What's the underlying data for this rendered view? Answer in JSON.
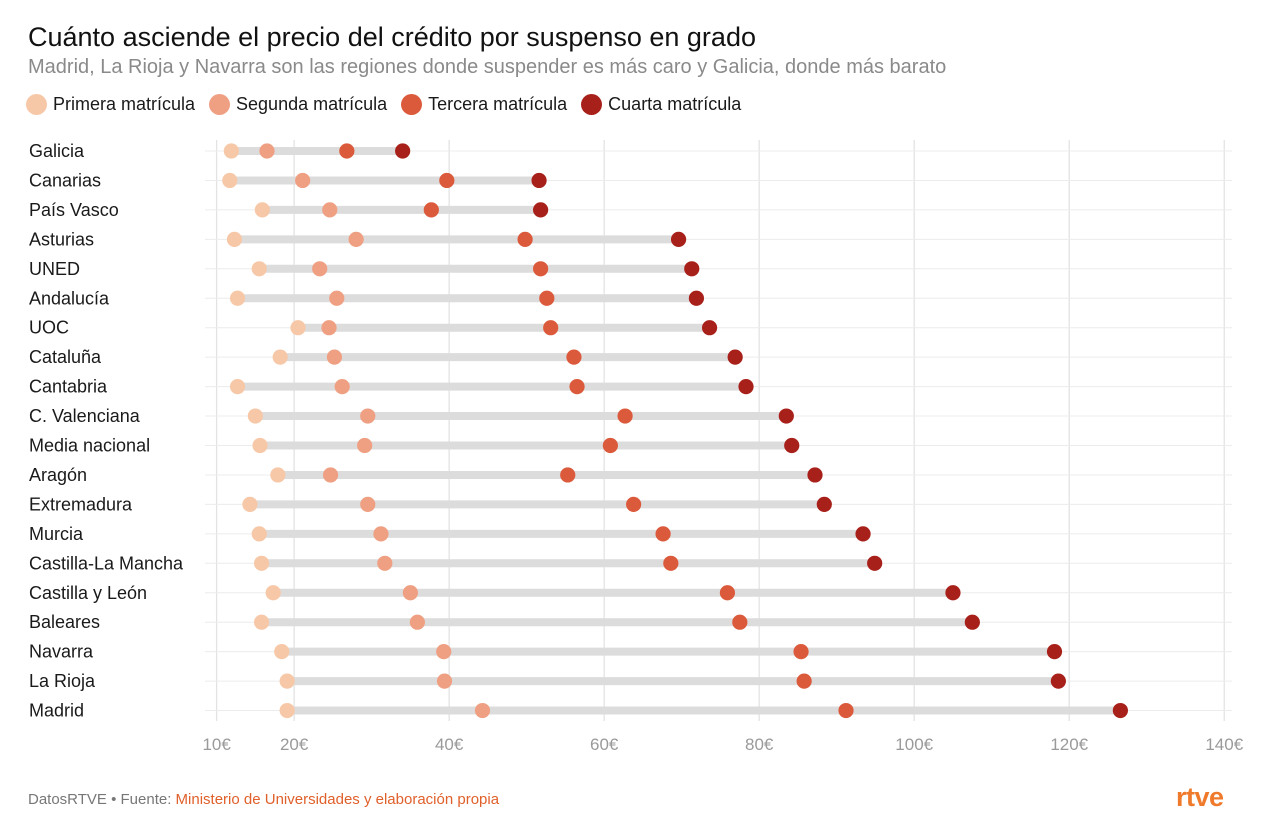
{
  "chart_data": {
    "type": "dumbbell",
    "title": "Cuánto asciende el precio del crédito por suspenso en grado",
    "subtitle": "Madrid, La Rioja y Navarra son las regiones donde suspender es más caro y Galicia, donde más barato",
    "xlim": [
      8.5,
      141
    ],
    "x_ticks": [
      10,
      20,
      40,
      60,
      80,
      100,
      120,
      140
    ],
    "x_tick_labels": [
      "10€",
      "20€",
      "40€",
      "60€",
      "80€",
      "100€",
      "120€",
      "140€"
    ],
    "grid": true,
    "legend_position": "top",
    "categories": [
      "Galicia",
      "Canarias",
      "País Vasco",
      "Asturias",
      "UNED",
      "Andalucía",
      "UOC",
      "Cataluña",
      "Cantabria",
      "C. Valenciana",
      "Media nacional",
      "Aragón",
      "Extremadura",
      "Murcia",
      "Castilla-La Mancha",
      "Castilla y León",
      "Baleares",
      "Navarra",
      "La Rioja",
      "Madrid"
    ],
    "series": [
      {
        "name": "Primera matrícula",
        "color": "#f7c8a7",
        "values": [
          11.9,
          11.7,
          15.9,
          12.3,
          15.5,
          12.7,
          20.5,
          18.2,
          12.7,
          15.0,
          15.6,
          17.9,
          14.3,
          15.5,
          15.8,
          17.3,
          15.8,
          18.4,
          19.1,
          19.1
        ]
      },
      {
        "name": "Segunda matrícula",
        "color": "#efa083",
        "values": [
          16.5,
          21.1,
          24.6,
          28.0,
          23.3,
          25.5,
          24.5,
          25.2,
          26.2,
          29.5,
          29.1,
          24.7,
          29.5,
          31.2,
          31.7,
          35.0,
          35.9,
          39.3,
          39.4,
          44.3
        ]
      },
      {
        "name": "Tercera matrícula",
        "color": "#dc5a3c",
        "values": [
          26.8,
          39.7,
          37.7,
          49.8,
          51.8,
          52.6,
          53.1,
          56.1,
          56.5,
          62.7,
          60.8,
          55.3,
          63.8,
          67.6,
          68.6,
          75.9,
          77.5,
          85.4,
          85.8,
          91.2
        ]
      },
      {
        "name": "Cuarta matrícula",
        "color": "#a8201a",
        "values": [
          34.0,
          51.6,
          51.8,
          69.6,
          71.3,
          71.9,
          73.6,
          76.9,
          78.3,
          83.5,
          84.2,
          87.2,
          88.4,
          93.4,
          94.9,
          105.0,
          107.5,
          118.1,
          118.6,
          126.6
        ]
      }
    ]
  },
  "footer": {
    "prefix": "DatosRTVE • Fuente: ",
    "source": "Ministerio de Universidades y elaboración propia"
  },
  "logo": "rtve"
}
